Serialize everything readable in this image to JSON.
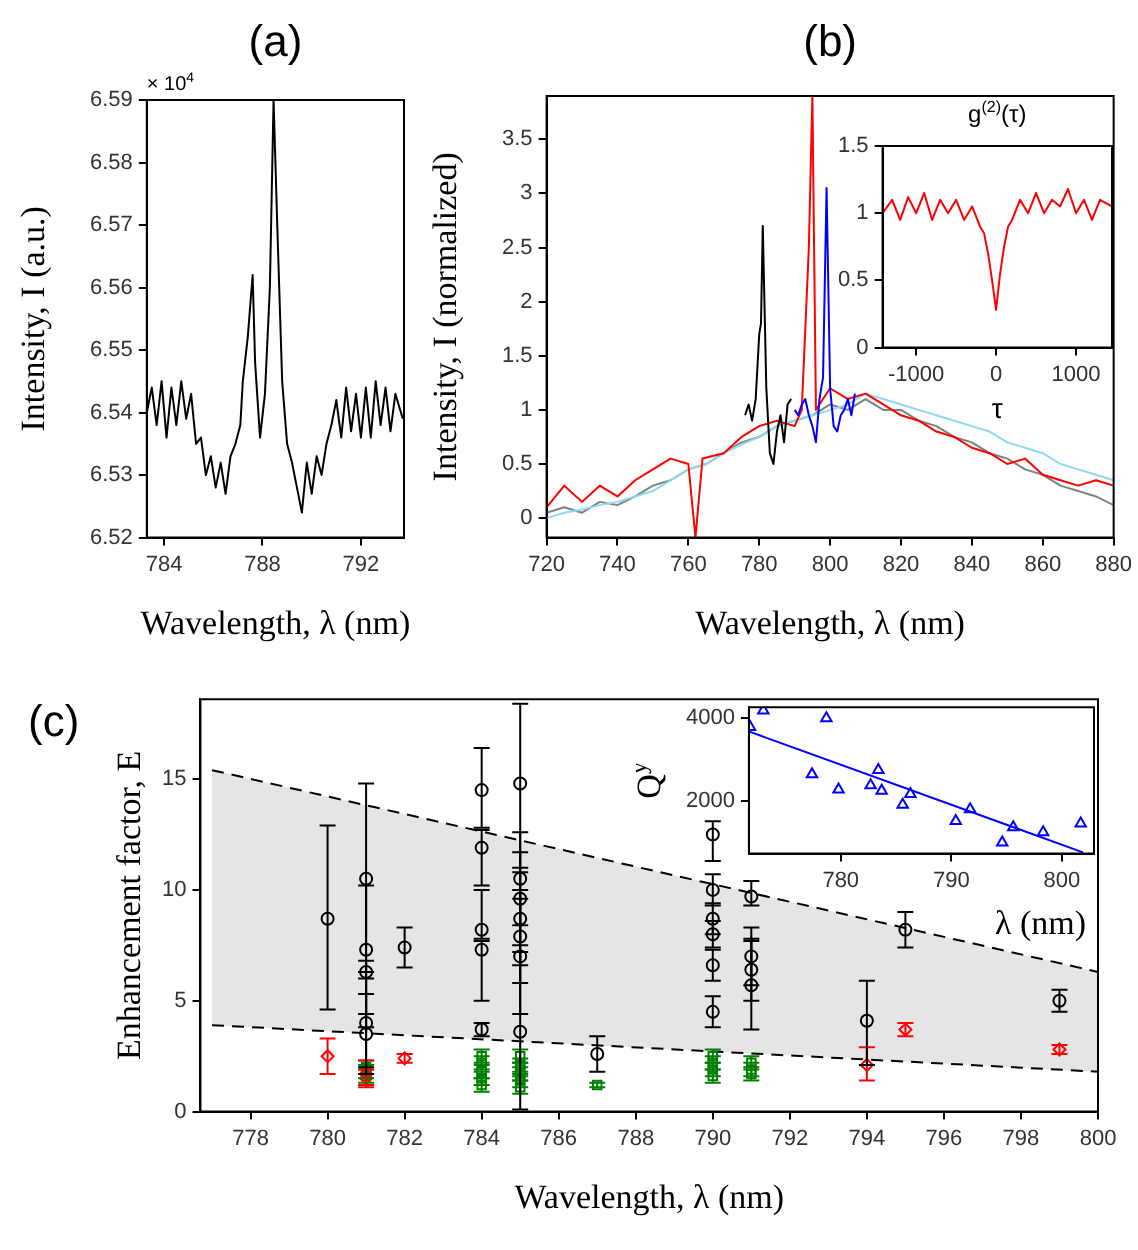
{
  "chart_data": [
    {
      "type": "line",
      "title": "(a)",
      "xlabel": "Wavelength, λ (nm)",
      "ylabel": "Intensity, I (a.u.)",
      "annotations": [
        "× 10$^{4}$"
      ],
      "x": [
        783.3,
        783.5,
        783.7,
        783.9,
        784.1,
        784.3,
        784.5,
        784.7,
        784.9,
        785.1,
        785.3,
        785.5,
        785.7,
        785.9,
        786.1,
        786.3,
        786.5,
        786.7,
        786.9,
        787.1,
        787.2,
        787.4,
        787.6,
        787.7,
        787.9,
        788.1,
        788.3,
        788.45,
        788.6,
        788.8,
        789.0,
        789.2,
        789.4,
        789.6,
        789.8,
        790.0,
        790.2,
        790.4,
        790.6,
        790.8,
        791.0,
        791.2,
        791.4,
        791.6,
        791.8,
        792.0,
        792.2,
        792.4,
        792.6,
        792.8,
        793.0,
        793.2,
        793.4,
        793.7
      ],
      "values": [
        6.54,
        6.544,
        6.538,
        6.545,
        6.536,
        6.544,
        6.538,
        6.545,
        6.539,
        6.543,
        6.535,
        6.536,
        6.53,
        6.533,
        6.528,
        6.532,
        6.527,
        6.533,
        6.535,
        6.538,
        6.545,
        6.552,
        6.562,
        6.548,
        6.536,
        6.543,
        6.56,
        6.59,
        6.57,
        6.545,
        6.535,
        6.532,
        6.528,
        6.524,
        6.532,
        6.527,
        6.533,
        6.53,
        6.535,
        6.538,
        6.542,
        6.536,
        6.544,
        6.537,
        6.543,
        6.536,
        6.544,
        6.536,
        6.545,
        6.538,
        6.544,
        6.537,
        6.543,
        6.539
      ],
      "color": "#000000",
      "xlim": [
        783.3,
        793.75
      ],
      "xticks": [
        784,
        788,
        792
      ],
      "ylim": [
        6.52,
        6.59
      ],
      "yticks": [
        6.52,
        6.53,
        6.54,
        6.55,
        6.56,
        6.57,
        6.58,
        6.59
      ]
    },
    {
      "type": "line",
      "title": "(b)",
      "xlabel": "Wavelength, λ (nm)",
      "ylabel": "Intensity, I (normalized)",
      "xlim": [
        720,
        880
      ],
      "xticks": [
        720,
        740,
        760,
        780,
        800,
        820,
        840,
        860,
        880
      ],
      "ylim": [
        -0.18,
        3.9
      ],
      "yticks": [
        0,
        0.5,
        1,
        1.5,
        2,
        2.5,
        3,
        3.5
      ],
      "series": [
        {
          "color": "#808080",
          "x": [
            720,
            725,
            730,
            735,
            740,
            745,
            750,
            755,
            760,
            765,
            770,
            775,
            780,
            785,
            790,
            795,
            800,
            805,
            810,
            815,
            820,
            825,
            830,
            835,
            840,
            845,
            850,
            855,
            860,
            865,
            870,
            875,
            880
          ],
          "values": [
            0.05,
            0.1,
            0.05,
            0.15,
            0.12,
            0.2,
            0.3,
            0.35,
            0.45,
            0.5,
            0.6,
            0.7,
            0.75,
            0.85,
            0.9,
            0.95,
            1.05,
            1.0,
            1.1,
            1.0,
            1.0,
            0.9,
            0.85,
            0.75,
            0.7,
            0.6,
            0.55,
            0.45,
            0.4,
            0.3,
            0.25,
            0.2,
            0.12
          ]
        },
        {
          "color": "#8fd9f5",
          "x": [
            720,
            725,
            730,
            735,
            740,
            745,
            750,
            755,
            760,
            765,
            770,
            775,
            780,
            785,
            790,
            795,
            800,
            805,
            810,
            815,
            820,
            825,
            830,
            835,
            840,
            845,
            850,
            855,
            860,
            865,
            870,
            875,
            880
          ],
          "values": [
            0.0,
            0.05,
            0.08,
            0.12,
            0.15,
            0.2,
            0.25,
            0.35,
            0.45,
            0.5,
            0.6,
            0.68,
            0.75,
            0.85,
            0.9,
            0.95,
            1.0,
            1.05,
            1.15,
            1.1,
            1.05,
            1.0,
            0.95,
            0.9,
            0.85,
            0.8,
            0.7,
            0.65,
            0.6,
            0.5,
            0.45,
            0.4,
            0.35
          ]
        },
        {
          "color": "#ff0000",
          "x": [
            720,
            725,
            730,
            735,
            740,
            745,
            750,
            755,
            760,
            762,
            764,
            770,
            775,
            780,
            785,
            790,
            792,
            794,
            795,
            796,
            798,
            800,
            805,
            810,
            815,
            820,
            825,
            830,
            835,
            840,
            845,
            850,
            855,
            860,
            865,
            870,
            875,
            880
          ],
          "values": [
            0.1,
            0.3,
            0.15,
            0.3,
            0.2,
            0.35,
            0.45,
            0.55,
            0.5,
            -0.18,
            0.55,
            0.6,
            0.75,
            0.85,
            0.9,
            0.85,
            1.0,
            2.5,
            3.9,
            1.0,
            1.1,
            1.2,
            1.1,
            1.15,
            1.05,
            0.95,
            0.9,
            0.8,
            0.75,
            0.65,
            0.6,
            0.5,
            0.55,
            0.4,
            0.35,
            0.3,
            0.35,
            0.3
          ]
        },
        {
          "color": "#000000",
          "x": [
            776,
            777,
            778,
            779,
            780,
            780.5,
            781,
            782,
            783,
            784,
            785,
            786,
            787,
            788,
            789
          ],
          "values": [
            0.95,
            1.05,
            0.9,
            1.1,
            1.7,
            1.8,
            2.7,
            1.2,
            0.6,
            0.5,
            0.8,
            0.95,
            0.7,
            1.05,
            1.1
          ]
        },
        {
          "color": "#0000ff",
          "x": [
            790,
            791,
            792,
            793,
            794,
            795,
            796,
            797,
            798,
            799,
            800,
            801,
            802,
            803,
            804,
            805,
            806,
            807
          ],
          "values": [
            1.0,
            0.95,
            1.05,
            1.1,
            0.95,
            0.85,
            0.7,
            1.1,
            1.3,
            3.05,
            1.2,
            0.85,
            0.8,
            0.95,
            1.0,
            1.1,
            0.95,
            1.15
          ]
        }
      ]
    },
    {
      "type": "line",
      "title": "g$^{(2)}$(τ)",
      "xlabel": "τ",
      "xlim": [
        -1420,
        1450
      ],
      "xticks": [
        -1000,
        0,
        1000
      ],
      "ylim": [
        0,
        1.5
      ],
      "yticks": [
        0,
        0.5,
        1,
        1.5
      ],
      "series": [
        {
          "color": "#ff0000",
          "x": [
            -1420,
            -1300,
            -1200,
            -1100,
            -1000,
            -900,
            -800,
            -700,
            -600,
            -500,
            -400,
            -300,
            -200,
            -150,
            -100,
            -50,
            0,
            50,
            100,
            150,
            200,
            300,
            400,
            500,
            600,
            700,
            800,
            900,
            1000,
            1100,
            1200,
            1300,
            1450
          ],
          "values": [
            1.0,
            1.1,
            0.95,
            1.12,
            1.0,
            1.15,
            0.95,
            1.1,
            1.0,
            1.1,
            0.95,
            1.05,
            0.9,
            0.85,
            0.7,
            0.5,
            0.28,
            0.55,
            0.75,
            0.9,
            0.95,
            1.1,
            1.0,
            1.15,
            1.0,
            1.1,
            1.05,
            1.18,
            1.0,
            1.1,
            0.95,
            1.1,
            1.05
          ]
        }
      ]
    },
    {
      "type": "scatter",
      "title": "(c)",
      "xlabel": "Wavelength, λ (nm)",
      "ylabel": "Enhancement factor, E",
      "xlim": [
        776.7,
        800
      ],
      "xticks": [
        778,
        780,
        782,
        784,
        786,
        788,
        790,
        792,
        794,
        796,
        798,
        800
      ],
      "ylim": [
        0,
        18.6
      ],
      "yticks": [
        0,
        5,
        10,
        15
      ],
      "series": [
        {
          "type": "line",
          "line_style": "dashed",
          "color": "#000000",
          "x": [
            777,
            800
          ],
          "values": [
            15.4,
            6.3
          ],
          "lower": [
            3.9,
            1.8
          ],
          "upper": [
            15.4,
            6.3
          ]
        },
        {
          "type": "line",
          "line_style": "dashed",
          "color": "#000000",
          "x": [
            777,
            800
          ],
          "values": [
            3.9,
            1.8
          ]
        },
        {
          "marker": "square",
          "color": "#008000",
          "x": [
            781,
            781,
            781,
            784,
            784,
            784,
            784,
            784,
            785,
            785,
            785,
            785,
            785,
            785,
            787,
            790,
            790,
            790,
            790,
            791,
            791,
            791
          ],
          "values": [
            2.0,
            1.8,
            1.6,
            2.5,
            2.2,
            1.8,
            1.5,
            1.2,
            2.5,
            2.1,
            1.9,
            1.7,
            1.4,
            1.1,
            1.2,
            2.5,
            2.2,
            1.9,
            1.6,
            2.2,
            1.9,
            1.7
          ],
          "errors": [
            0.3,
            0.3,
            0.3,
            0.3,
            0.3,
            0.3,
            0.3,
            0.3,
            0.3,
            0.3,
            0.3,
            0.3,
            0.3,
            0.3,
            0.1,
            0.3,
            0.3,
            0.3,
            0.3,
            0.3,
            0.3,
            0.3
          ]
        },
        {
          "marker": "diamond",
          "color": "#ff0000",
          "x": [
            780,
            781,
            781,
            782,
            794,
            795,
            799
          ],
          "values": [
            2.5,
            1.7,
            1.5,
            2.4,
            2.1,
            3.7,
            2.8
          ],
          "errors": [
            [
              1.7,
              3.3
            ],
            [
              1.1,
              2.3
            ],
            [
              1.2,
              1.9
            ],
            [
              2.2,
              2.6
            ],
            [
              1.4,
              2.9
            ],
            [
              3.4,
              4.0
            ],
            [
              2.6,
              3.0
            ]
          ]
        },
        {
          "marker": "circle",
          "color": "#000000",
          "x": [
            780,
            781,
            781,
            781,
            781,
            781,
            782,
            784,
            784,
            784,
            784,
            784,
            785,
            785,
            785,
            785,
            785,
            785,
            785,
            787,
            790,
            790,
            790,
            790,
            790,
            790,
            791,
            791,
            791,
            791,
            794,
            795,
            799
          ],
          "values": [
            8.7,
            10.5,
            7.3,
            6.3,
            4.0,
            3.5,
            7.4,
            14.5,
            11.9,
            8.2,
            7.3,
            3.7,
            14.8,
            10.5,
            9.6,
            8.7,
            7.9,
            7.0,
            3.6,
            2.6,
            12.5,
            10.0,
            8.7,
            8.0,
            6.6,
            4.5,
            9.7,
            7.0,
            6.4,
            5.7,
            4.1,
            8.2,
            5.0
          ],
          "errors": [
            [
              4.6,
              12.9
            ],
            [
              6.3,
              14.8
            ],
            [
              4.4,
              10.2
            ],
            [
              3.8,
              6.8
            ],
            [
              2.0,
              6.0
            ],
            [
              1.7,
              5.3
            ],
            [
              6.5,
              8.3
            ],
            [
              12.8,
              16.4
            ],
            [
              10.2,
              12.7
            ],
            [
              7.8,
              10.0
            ],
            [
              5.0,
              7.7
            ],
            [
              3.4,
              4.0
            ],
            [
              11.0,
              18.4
            ],
            [
              8.4,
              12.6
            ],
            [
              7.5,
              11.7
            ],
            [
              6.6,
              10.8
            ],
            [
              5.8,
              10.0
            ],
            [
              4.4,
              9.6
            ],
            [
              0.1,
              7.2
            ],
            [
              1.8,
              3.4
            ],
            [
              11.3,
              13.1
            ],
            [
              9.3,
              10.7
            ],
            [
              8.0,
              9.4
            ],
            [
              7.4,
              8.6
            ],
            [
              5.9,
              7.3
            ],
            [
              3.8,
              5.2
            ],
            [
              9.3,
              10.4
            ],
            [
              5.7,
              8.3
            ],
            [
              5.0,
              7.8
            ],
            [
              3.7,
              7.7
            ],
            [
              2.1,
              5.9
            ],
            [
              7.4,
              9.0
            ],
            [
              4.5,
              5.5
            ]
          ]
        }
      ]
    },
    {
      "type": "scatter",
      "xlabel": "λ (nm)",
      "ylabel": "Q$^{y}$",
      "xlim": [
        771.7,
        802.9
      ],
      "xticks": [
        780,
        790,
        800
      ],
      "ylim": [
        710,
        4270
      ],
      "yticks": [
        2000,
        4000
      ],
      "series": [
        {
          "marker": "triangle",
          "color": "#0000ff",
          "x": [
            771.8,
            773.0,
            777.4,
            778.7,
            779.8,
            782.7,
            783.4,
            783.7,
            785.6,
            786.3,
            790.4,
            791.7,
            794.6,
            795.6,
            798.3,
            801.7
          ],
          "values": [
            3790,
            4190,
            2640,
            4000,
            2270,
            2370,
            2740,
            2240,
            1900,
            2160,
            1500,
            1790,
            980,
            1350,
            1230,
            1440
          ]
        },
        {
          "type": "line",
          "color": "#0000ff",
          "x": [
            771.8,
            801.9
          ],
          "values": [
            3670,
            740
          ]
        }
      ]
    }
  ]
}
